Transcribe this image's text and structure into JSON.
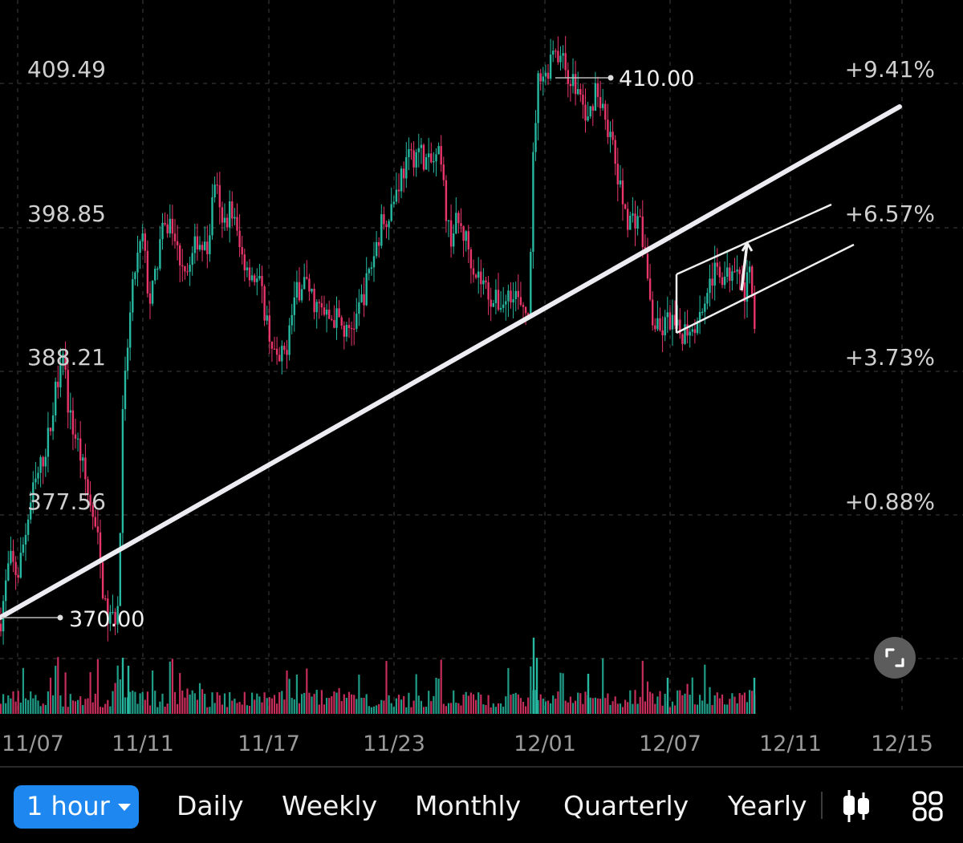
{
  "chart_data": {
    "type": "candlestick",
    "x_ticks": [
      "11/07",
      "11/11",
      "11/17",
      "11/23",
      "12/01",
      "12/07",
      "12/11",
      "12/15"
    ],
    "y_ticks_price": [
      "409.49",
      "398.85",
      "388.21",
      "377.56"
    ],
    "y_ticks_percent": [
      "+9.41%",
      "+6.57%",
      "+3.73%",
      "+0.88%"
    ],
    "ylim": [
      366.9,
      411.8
    ],
    "high_marker": "410.00",
    "low_marker": "370.00",
    "colors": {
      "up": "#26b8a0",
      "down": "#e8356a",
      "grid": "#2a2a2a",
      "trendline": "#ececf2"
    },
    "price_path": [
      [
        0,
        373
      ],
      [
        12,
        377
      ],
      [
        22,
        376
      ],
      [
        40,
        381
      ],
      [
        52,
        383
      ],
      [
        62,
        385
      ],
      [
        72,
        388.4
      ],
      [
        78,
        390.5
      ],
      [
        86,
        386
      ],
      [
        98,
        384
      ],
      [
        110,
        381
      ],
      [
        122,
        378
      ],
      [
        132,
        373.5
      ],
      [
        140,
        373.2
      ],
      [
        148,
        374
      ],
      [
        152,
        385
      ],
      [
        160,
        391
      ],
      [
        168,
        395
      ],
      [
        178,
        397
      ],
      [
        186,
        393
      ],
      [
        192,
        394
      ],
      [
        200,
        397
      ],
      [
        212,
        398
      ],
      [
        222,
        396
      ],
      [
        236,
        395
      ],
      [
        246,
        397
      ],
      [
        258,
        396
      ],
      [
        268,
        400.8
      ],
      [
        276,
        397.5
      ],
      [
        288,
        399
      ],
      [
        300,
        396
      ],
      [
        312,
        395
      ],
      [
        324,
        394
      ],
      [
        336,
        391
      ],
      [
        346,
        389
      ],
      [
        356,
        390
      ],
      [
        366,
        393
      ],
      [
        378,
        394.5
      ],
      [
        392,
        393
      ],
      [
        406,
        392
      ],
      [
        420,
        392
      ],
      [
        432,
        391
      ],
      [
        444,
        392
      ],
      [
        456,
        394
      ],
      [
        466,
        396
      ],
      [
        476,
        398
      ],
      [
        488,
        399
      ],
      [
        500,
        401
      ],
      [
        512,
        402
      ],
      [
        522,
        402.5
      ],
      [
        534,
        401.5
      ],
      [
        548,
        402
      ],
      [
        560,
        397
      ],
      [
        570,
        398
      ],
      [
        580,
        397
      ],
      [
        592,
        395
      ],
      [
        604,
        394
      ],
      [
        616,
        393
      ],
      [
        628,
        393
      ],
      [
        640,
        394
      ],
      [
        652,
        392
      ],
      [
        660,
        393
      ],
      [
        665,
        403
      ],
      [
        672,
        407.6
      ],
      [
        680,
        407
      ],
      [
        690,
        409.2
      ],
      [
        700,
        408
      ],
      [
        710,
        407
      ],
      [
        722,
        406
      ],
      [
        732,
        404
      ],
      [
        742,
        406.5
      ],
      [
        752,
        405
      ],
      [
        762,
        403
      ],
      [
        772,
        400
      ],
      [
        784,
        398
      ],
      [
        796,
        398.5
      ],
      [
        806,
        395
      ],
      [
        812,
        392
      ],
      [
        822,
        391
      ],
      [
        834,
        392
      ],
      [
        846,
        391
      ],
      [
        858,
        391.5
      ],
      [
        870,
        392
      ],
      [
        882,
        394
      ],
      [
        894,
        395
      ],
      [
        906,
        394.5
      ],
      [
        918,
        396
      ],
      [
        926,
        393.5
      ],
      [
        934,
        394.5
      ],
      [
        942,
        391.5
      ]
    ],
    "volume_spikes": [
      {
        "x": 153,
        "v": 0.7
      },
      {
        "x": 160,
        "v": 0.6
      },
      {
        "x": 665,
        "v": 0.95
      },
      {
        "x": 669,
        "v": 0.7
      },
      {
        "x": 733,
        "v": 0.5
      },
      {
        "x": 832,
        "v": 0.45
      },
      {
        "x": 940,
        "v": 0.45
      }
    ],
    "annotations": {
      "trendline": {
        "x1": 0,
        "y1": 770,
        "x2": 1121,
        "y2": 133
      },
      "channel_upper": {
        "x1": 843,
        "y1": 342,
        "x2": 1036,
        "y2": 255
      },
      "channel_lower": {
        "x1": 843,
        "y1": 415,
        "x2": 1064,
        "y2": 305
      },
      "arrow": {
        "x1": 924,
        "y1": 362,
        "x2": 931,
        "y2": 303
      }
    }
  },
  "toolbar": {
    "active_interval": "1 hour",
    "intervals": [
      "Daily",
      "Weekly",
      "Monthly",
      "Quarterly",
      "Yearly"
    ],
    "chart_type_icon": "candlestick-icon",
    "layout_icon": "grid-icon",
    "expand_icon": "expand-icon"
  }
}
